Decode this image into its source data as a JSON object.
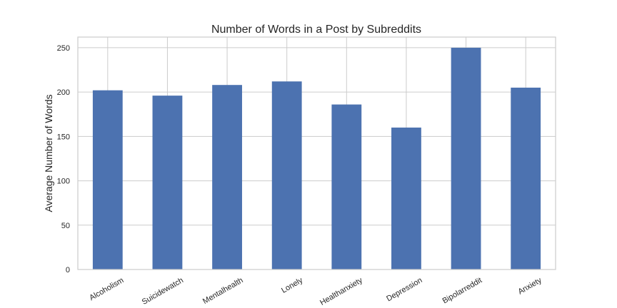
{
  "chart_data": {
    "type": "bar",
    "title": "Number of Words in a Post by Subreddits",
    "xlabel": "",
    "ylabel": "Average Number of Words",
    "categories": [
      "Alcoholism",
      "Suicidewatch",
      "Mentalhealth",
      "Lonely",
      "Healthanxiety",
      "Depression",
      "Bipolarreddit",
      "Anxiety"
    ],
    "values": [
      202,
      196,
      208,
      212,
      186,
      160,
      250,
      205
    ],
    "ylim": [
      0,
      262
    ],
    "yticks": [
      0,
      50,
      100,
      150,
      200,
      250
    ],
    "grid": true,
    "bar_color": "#4c72b0"
  }
}
